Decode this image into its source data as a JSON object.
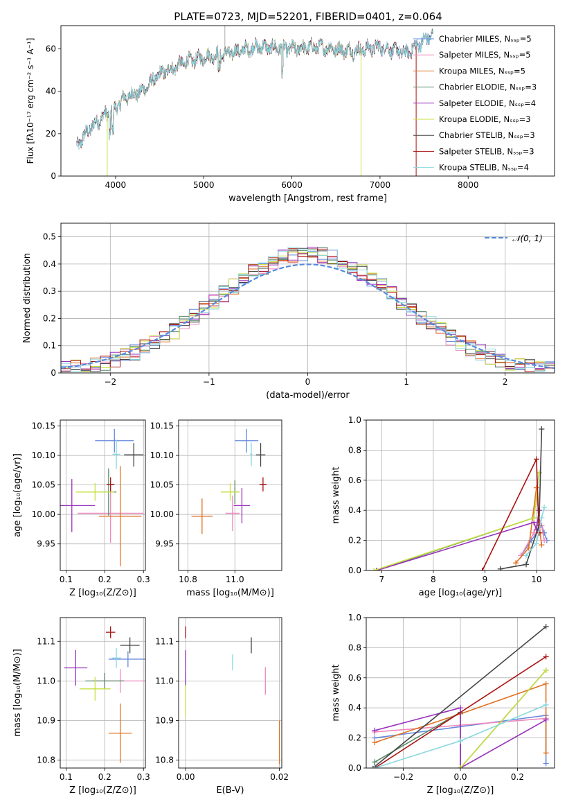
{
  "figure_title": "PLATE=0723, MJD=52201, FIBERID=0401, z=0.064",
  "colors": {
    "MILES_Chabrier": "#6688dd",
    "MILES_Salpeter": "#ee88bb",
    "MILES_Kroupa": "#e07020",
    "ELODIE_Chabrier": "#558866",
    "ELODIE_Salpeter": "#9933bb",
    "ELODIE_Kroupa": "#c8e040",
    "STELIB_Chabrier": "#444444",
    "STELIB_Salpeter": "#aa1111",
    "STELIB_Kroupa": "#88d8e0"
  },
  "chart_data": [
    {
      "id": "spectrum",
      "type": "line",
      "xlabel": "wavelength [Angstrom, rest frame]",
      "ylabel": "Flux [fλ10⁻¹⁷ erg cm⁻² s⁻¹ A⁻¹]",
      "xlim": [
        3380,
        8980
      ],
      "ylim": [
        0,
        71
      ],
      "xticks": [
        4000,
        5000,
        6000,
        7000,
        8000
      ],
      "yticks": [
        0,
        20,
        40,
        60
      ],
      "legend_position": "top-right",
      "continuum": {
        "x": [
          3560,
          3700,
          3850,
          4000,
          4100,
          4300,
          4500,
          4800,
          5000,
          5300,
          5600,
          6000,
          6300,
          6700,
          7000,
          7300,
          7600
        ],
        "y": [
          14,
          22,
          28,
          32,
          37,
          40,
          48,
          54,
          56,
          58,
          61,
          60,
          61,
          59,
          61,
          58,
          67
        ]
      },
      "series": [
        {
          "name": "Chabrier MILES, N_SSP=5"
        },
        {
          "name": "Salpeter MILES, N_SSP=5"
        },
        {
          "name": "Kroupa MILES, N_SSP=5"
        },
        {
          "name": "Chabrier ELODIE, N_SSP=3"
        },
        {
          "name": "Salpeter ELODIE, N_SSP=4"
        },
        {
          "name": "Kroupa ELODIE, N_SSP=3"
        },
        {
          "name": "Chabrier STELIB, N_SSP=3"
        },
        {
          "name": "Salpeter STELIB, N_SSP=3"
        },
        {
          "name": "Kroupa STELIB, N_SSP=4"
        }
      ]
    },
    {
      "id": "residuals",
      "type": "histogram",
      "xlabel": "(data-model)/error",
      "ylabel": "Normed distribution",
      "xlim": [
        -2.5,
        2.5
      ],
      "ylim": [
        0,
        0.55
      ],
      "xticks": [
        -2,
        -1,
        0,
        1,
        2
      ],
      "yticks": [
        0.0,
        0.1,
        0.2,
        0.3,
        0.4,
        0.5
      ],
      "bin_width": 0.1,
      "reference_curve": {
        "name": "𝒩(0, 1)",
        "mean": 0,
        "sigma": 1
      },
      "legend_position": "top-right"
    },
    {
      "id": "age_vs_Z",
      "type": "scatter",
      "xlabel": "Z [log₁₀(Z/Z⊙)]",
      "ylabel": "age  [log₁₀(age/yr)]",
      "xlim": [
        0.085,
        0.305
      ],
      "ylim": [
        9.905,
        10.16
      ],
      "xticks": [
        0.1,
        0.2,
        0.3
      ],
      "yticks": [
        9.95,
        10.0,
        10.05,
        10.1,
        10.15
      ],
      "points": [
        {
          "series": "MILES_Chabrier",
          "x": 0.225,
          "y": 10.125,
          "xerr": 0.05,
          "yerr": 0.02
        },
        {
          "series": "MILES_Salpeter",
          "x": 0.215,
          "y": 10.002,
          "xerr": 0.085,
          "yerr": 0.05
        },
        {
          "series": "MILES_Kroupa",
          "x": 0.24,
          "y": 9.997,
          "xerr": 0.055,
          "yerr": 0.085
        },
        {
          "series": "ELODIE_Chabrier",
          "x": 0.21,
          "y": 10.038,
          "xerr": 0.02,
          "yerr": 0.04
        },
        {
          "series": "ELODIE_Salpeter",
          "x": 0.115,
          "y": 10.015,
          "xerr": 0.06,
          "yerr": 0.045
        },
        {
          "series": "ELODIE_Kroupa",
          "x": 0.175,
          "y": 10.038,
          "xerr": 0.05,
          "yerr": 0.015
        },
        {
          "series": "STELIB_Chabrier",
          "x": 0.275,
          "y": 10.101,
          "xerr": 0.025,
          "yerr": 0.02
        },
        {
          "series": "STELIB_Salpeter",
          "x": 0.215,
          "y": 10.051,
          "xerr": 0.01,
          "yerr": 0.012
        },
        {
          "series": "STELIB_Kroupa",
          "x": 0.23,
          "y": 10.102,
          "xerr": 0.01,
          "yerr": 0.025
        }
      ]
    },
    {
      "id": "age_vs_mass",
      "type": "scatter",
      "xlabel": "mass [log₁₀(M/M⊙)]",
      "ylabel": "",
      "xlim": [
        10.76,
        11.2
      ],
      "ylim": [
        9.905,
        10.16
      ],
      "xticks": [
        10.8,
        11.0
      ],
      "yticks": [
        9.95,
        10.0,
        10.05,
        10.1,
        10.15
      ],
      "points": [
        {
          "series": "MILES_Chabrier",
          "x": 11.05,
          "y": 10.125,
          "xerr": 0.05,
          "yerr": 0.02
        },
        {
          "series": "MILES_Salpeter",
          "x": 10.99,
          "y": 10.002,
          "xerr": 0.03,
          "yerr": 0.03
        },
        {
          "series": "MILES_Kroupa",
          "x": 10.86,
          "y": 9.997,
          "xerr": 0.045,
          "yerr": 0.03
        },
        {
          "series": "ELODIE_Chabrier",
          "x": 11.0,
          "y": 10.038,
          "xerr": 0.02,
          "yerr": 0.02
        },
        {
          "series": "ELODIE_Salpeter",
          "x": 11.03,
          "y": 10.015,
          "xerr": 0.035,
          "yerr": 0.03
        },
        {
          "series": "ELODIE_Kroupa",
          "x": 10.98,
          "y": 10.038,
          "xerr": 0.04,
          "yerr": 0.015
        },
        {
          "series": "STELIB_Chabrier",
          "x": 11.11,
          "y": 10.101,
          "xerr": 0.02,
          "yerr": 0.02
        },
        {
          "series": "STELIB_Salpeter",
          "x": 11.12,
          "y": 10.051,
          "xerr": 0.015,
          "yerr": 0.012
        },
        {
          "series": "STELIB_Kroupa",
          "x": 11.07,
          "y": 10.102,
          "xerr": 0.005,
          "yerr": 0.02
        }
      ]
    },
    {
      "id": "weight_vs_age",
      "type": "line",
      "xlabel": "age  [log₁₀(age/yr)]",
      "ylabel": "mass weight",
      "xlim": [
        6.7,
        10.35
      ],
      "ylim": [
        0,
        1.0
      ],
      "xticks": [
        7,
        8,
        9,
        10
      ],
      "yticks": [
        0.0,
        0.2,
        0.4,
        0.6,
        0.8,
        1.0
      ],
      "series": [
        {
          "key": "MILES_Chabrier",
          "x": [
            9.7,
            9.9,
            10.1,
            10.15,
            10.2
          ],
          "y": [
            0.1,
            0.2,
            0.3,
            0.25,
            0.2
          ]
        },
        {
          "key": "MILES_Salpeter",
          "x": [
            9.7,
            9.95,
            10.05,
            10.1,
            10.15
          ],
          "y": [
            0.1,
            0.25,
            0.35,
            0.3,
            0.2
          ]
        },
        {
          "key": "MILES_Kroupa",
          "x": [
            9.6,
            9.85,
            10.0,
            10.07,
            10.1
          ],
          "y": [
            0.05,
            0.15,
            0.55,
            0.25,
            0.17
          ]
        },
        {
          "key": "ELODIE_Chabrier",
          "x": [
            6.9,
            9.95,
            10.05
          ],
          "y": [
            0.0,
            0.35,
            0.65
          ]
        },
        {
          "key": "ELODIE_Salpeter",
          "x": [
            6.9,
            9.95,
            10.0,
            10.05
          ],
          "y": [
            0.0,
            0.32,
            0.27,
            0.4
          ]
        },
        {
          "key": "ELODIE_Kroupa",
          "x": [
            6.85,
            9.95,
            10.05
          ],
          "y": [
            0.0,
            0.35,
            0.65
          ]
        },
        {
          "key": "STELIB_Chabrier",
          "x": [
            9.3,
            9.8,
            10.05,
            10.1
          ],
          "y": [
            0.01,
            0.04,
            0.3,
            0.94
          ]
        },
        {
          "key": "STELIB_Salpeter",
          "x": [
            8.95,
            10.0,
            10.05
          ],
          "y": [
            0.0,
            0.74,
            0.25
          ]
        },
        {
          "key": "STELIB_Kroupa",
          "x": [
            9.8,
            10.0,
            10.1,
            10.15
          ],
          "y": [
            0.1,
            0.18,
            0.35,
            0.42
          ]
        }
      ]
    },
    {
      "id": "mass_vs_Z",
      "type": "scatter",
      "xlabel": "Z [log₁₀(Z/Z⊙)]",
      "ylabel": "mass [log₁₀(M/M⊙)]",
      "xlim": [
        0.085,
        0.305
      ],
      "ylim": [
        10.78,
        11.16
      ],
      "xticks": [
        0.1,
        0.2,
        0.3
      ],
      "yticks": [
        10.8,
        10.9,
        11.0,
        11.1
      ],
      "points": [
        {
          "series": "MILES_Chabrier",
          "x": 0.26,
          "y": 11.055,
          "xerr": 0.05,
          "yerr": 0.02
        },
        {
          "series": "MILES_Salpeter",
          "x": 0.24,
          "y": 11.0,
          "xerr": 0.07,
          "yerr": 0.03
        },
        {
          "series": "MILES_Kroupa",
          "x": 0.24,
          "y": 10.868,
          "xerr": 0.03,
          "yerr": 0.075
        },
        {
          "series": "ELODIE_Chabrier",
          "x": 0.2,
          "y": 11.0,
          "xerr": 0.05,
          "yerr": 0.02
        },
        {
          "series": "ELODIE_Salpeter",
          "x": 0.125,
          "y": 11.033,
          "xerr": 0.03,
          "yerr": 0.045
        },
        {
          "series": "ELODIE_Kroupa",
          "x": 0.175,
          "y": 10.98,
          "xerr": 0.04,
          "yerr": 0.03
        },
        {
          "series": "STELIB_Chabrier",
          "x": 0.265,
          "y": 11.09,
          "xerr": 0.025,
          "yerr": 0.02
        },
        {
          "series": "STELIB_Salpeter",
          "x": 0.215,
          "y": 11.123,
          "xerr": 0.012,
          "yerr": 0.015
        },
        {
          "series": "STELIB_Kroupa",
          "x": 0.23,
          "y": 11.058,
          "xerr": 0.012,
          "yerr": 0.025
        }
      ]
    },
    {
      "id": "mass_vs_EBV",
      "type": "scatter",
      "xlabel": "E(B-V)",
      "ylabel": "",
      "xlim": [
        -0.0015,
        0.0205
      ],
      "ylim": [
        10.78,
        11.16
      ],
      "xticks": [
        0.0,
        0.02
      ],
      "yticks": [
        10.8,
        10.9,
        11.0,
        11.1
      ],
      "points": [
        {
          "series": "MILES_Chabrier",
          "x": 0.0,
          "y": 11.055,
          "xerr": 0.0,
          "yerr": 0.02
        },
        {
          "series": "MILES_Salpeter",
          "x": 0.017,
          "y": 11.0,
          "xerr": 0.0,
          "yerr": 0.035
        },
        {
          "series": "MILES_Kroupa",
          "x": 0.02,
          "y": 10.845,
          "xerr": 0.0,
          "yerr": 0.055
        },
        {
          "series": "ELODIE_Chabrier",
          "x": 0.0,
          "y": 11.0,
          "xerr": 0.0,
          "yerr": 0.02
        },
        {
          "series": "ELODIE_Salpeter",
          "x": 0.0,
          "y": 11.033,
          "xerr": 0.0,
          "yerr": 0.045
        },
        {
          "series": "ELODIE_Kroupa",
          "x": 0.0,
          "y": 10.95,
          "xerr": 0.0,
          "yerr": 0.04
        },
        {
          "series": "STELIB_Chabrier",
          "x": 0.014,
          "y": 11.09,
          "xerr": 0.0,
          "yerr": 0.02
        },
        {
          "series": "STELIB_Salpeter",
          "x": 0.0,
          "y": 11.123,
          "xerr": 0.0,
          "yerr": 0.015
        },
        {
          "series": "STELIB_Kroupa",
          "x": 0.01,
          "y": 11.047,
          "xerr": 0.0,
          "yerr": 0.02
        }
      ]
    },
    {
      "id": "weight_vs_Z",
      "type": "line",
      "xlabel": "Z [log₁₀(Z/Z⊙)]",
      "ylabel": "mass weight",
      "xlim": [
        -0.33,
        0.33
      ],
      "ylim": [
        0,
        1.0
      ],
      "xticks": [
        -0.2,
        0.0,
        0.2
      ],
      "yticks": [
        0.0,
        0.2,
        0.4,
        0.6,
        0.8,
        1.0
      ],
      "series": [
        {
          "key": "MILES_Chabrier",
          "x": [
            -0.3,
            0.3,
            0.3
          ],
          "y": [
            0.2,
            0.35,
            0.03
          ]
        },
        {
          "key": "MILES_Salpeter",
          "x": [
            -0.3,
            0.3
          ],
          "y": [
            0.24,
            0.33
          ]
        },
        {
          "key": "MILES_Kroupa",
          "x": [
            -0.3,
            0.0,
            0.3,
            0.3
          ],
          "y": [
            0.17,
            0.36,
            0.56,
            0.1
          ]
        },
        {
          "key": "ELODIE_Chabrier",
          "x": [
            -0.3,
            0.0,
            0.0,
            0.3
          ],
          "y": [
            0.04,
            0.37,
            0.0,
            0.65
          ]
        },
        {
          "key": "ELODIE_Salpeter",
          "x": [
            -0.3,
            0.0,
            0.0,
            0.3
          ],
          "y": [
            0.25,
            0.4,
            0.0,
            0.32
          ]
        },
        {
          "key": "ELODIE_Kroupa",
          "x": [
            0.0,
            0.3
          ],
          "y": [
            0.0,
            0.65
          ]
        },
        {
          "key": "STELIB_Chabrier",
          "x": [
            -0.3,
            0.3
          ],
          "y": [
            0.01,
            0.94
          ]
        },
        {
          "key": "STELIB_Salpeter",
          "x": [
            -0.3,
            0.3
          ],
          "y": [
            0.0,
            0.74
          ]
        },
        {
          "key": "STELIB_Kroupa",
          "x": [
            -0.3,
            0.0,
            0.3
          ],
          "y": [
            0.0,
            0.18,
            0.42
          ]
        }
      ]
    }
  ]
}
